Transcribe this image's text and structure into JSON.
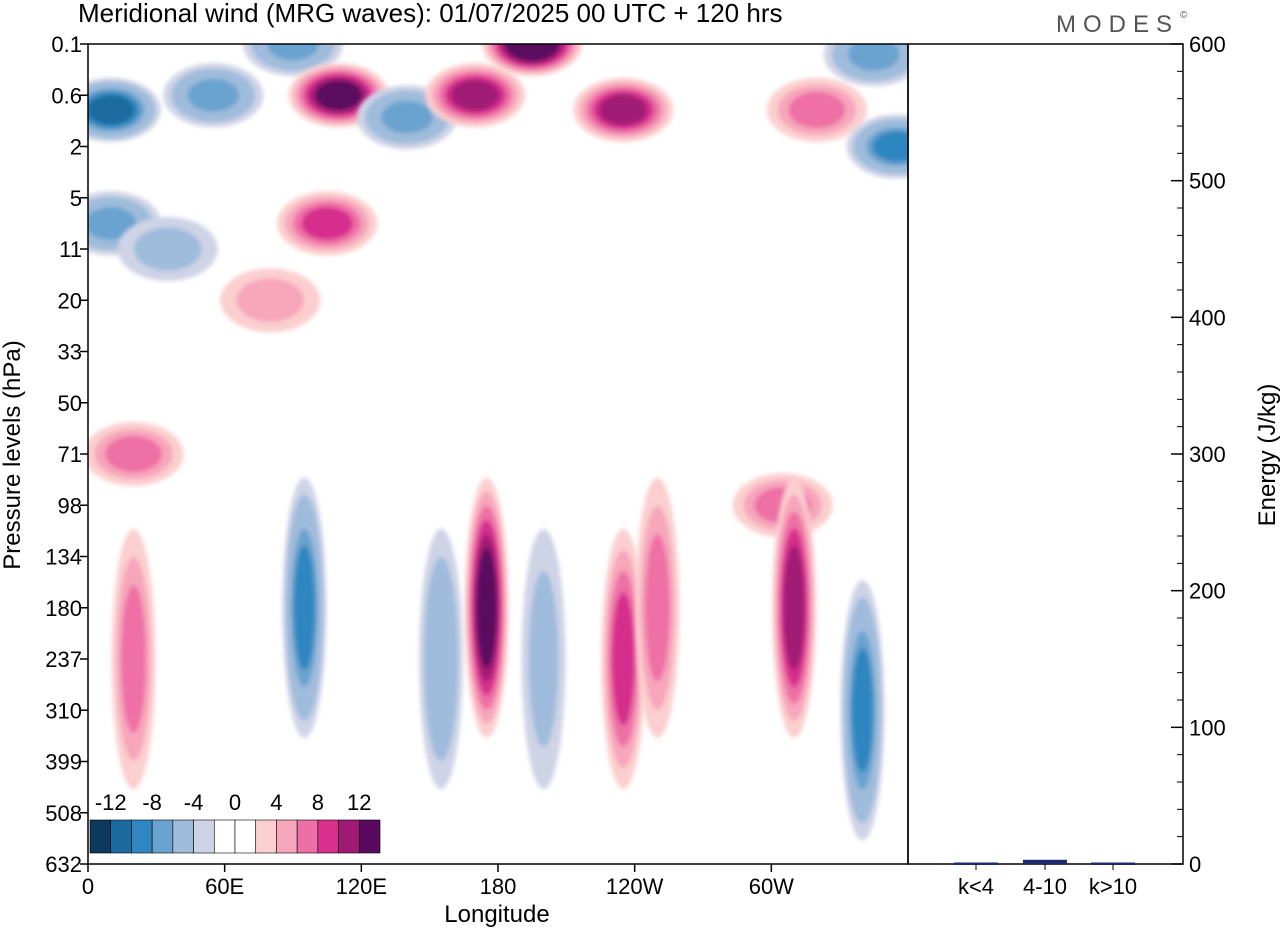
{
  "title": "Meridional wind (MRG waves):  01/07/2025  00 UTC  + 120 hrs",
  "brand": "MODES",
  "brand_mark": "©",
  "chart_data": [
    {
      "type": "heatmap",
      "title": "Meridional wind (MRG waves):  01/07/2025  00 UTC  + 120 hrs",
      "xlabel": "Longitude",
      "ylabel": "Pressure levels (hPa)",
      "x_ticks": [
        {
          "lon": 0,
          "label": "0"
        },
        {
          "lon": 60,
          "label": "60E"
        },
        {
          "lon": 120,
          "label": "120E"
        },
        {
          "lon": 180,
          "label": "180"
        },
        {
          "lon": 240,
          "label": "120W"
        },
        {
          "lon": 300,
          "label": "60W"
        }
      ],
      "xlim": [
        0,
        360
      ],
      "y_levels": [
        "0.1",
        "0.6",
        "2",
        "5",
        "11",
        "20",
        "33",
        "50",
        "71",
        "98",
        "134",
        "180",
        "237",
        "310",
        "399",
        "508",
        "632"
      ],
      "y_scale": "model levels (top 0.1 hPa, bottom 632 hPa)",
      "colorbar": {
        "labels": [
          "-12",
          "-8",
          "-4",
          "0",
          "4",
          "8",
          "12"
        ],
        "colors": [
          "#0c3a5e",
          "#1a6aa0",
          "#2f86c0",
          "#6aa3cf",
          "#9fbcdc",
          "#cfd3e6",
          "#ffffff",
          "#ffffff",
          "#fbcfcf",
          "#f7a6bb",
          "#ee6fa5",
          "#d62f8c",
          "#a01a74",
          "#5a0a5e"
        ],
        "placement": "bottom-left"
      },
      "features": [
        {
          "lon": 10,
          "level": "1",
          "value": -12
        },
        {
          "lon": 55,
          "level": "0.6",
          "value": -8
        },
        {
          "lon": 90,
          "level": "0.1",
          "value": -8
        },
        {
          "lon": 110,
          "level": "0.6",
          "value": 12
        },
        {
          "lon": 140,
          "level": "1.2",
          "value": -8
        },
        {
          "lon": 170,
          "level": "0.6",
          "value": 10
        },
        {
          "lon": 195,
          "level": "0.1",
          "value": 14
        },
        {
          "lon": 235,
          "level": "1",
          "value": 10
        },
        {
          "lon": 320,
          "level": "1",
          "value": 6
        },
        {
          "lon": 345,
          "level": "0.2",
          "value": -8
        },
        {
          "lon": 355,
          "level": "2",
          "value": -10
        },
        {
          "lon": 10,
          "level": "8",
          "value": -8
        },
        {
          "lon": 105,
          "level": "8",
          "value": 8
        },
        {
          "lon": 35,
          "level": "11",
          "value": -4
        },
        {
          "lon": 80,
          "level": "20",
          "value": 4
        },
        {
          "lon": 20,
          "level": "71",
          "value": 6
        },
        {
          "lon": 305,
          "level": "98",
          "value": 6
        },
        {
          "lon": 20,
          "level": "237",
          "value": 5
        },
        {
          "lon": 95,
          "level": "180",
          "value": -10
        },
        {
          "lon": 155,
          "level": "237",
          "value": -6
        },
        {
          "lon": 175,
          "level": "180",
          "value": 12
        },
        {
          "lon": 200,
          "level": "237",
          "value": -4
        },
        {
          "lon": 235,
          "level": "237",
          "value": 8
        },
        {
          "lon": 250,
          "level": "180",
          "value": 6
        },
        {
          "lon": 310,
          "level": "180",
          "value": 10
        },
        {
          "lon": 340,
          "level": "310",
          "value": -10
        }
      ]
    },
    {
      "type": "bar",
      "categories": [
        "k<4",
        "4-10",
        "k>10"
      ],
      "values": [
        0,
        2,
        0
      ],
      "ylabel": "Energy (J/kg)",
      "ylim": [
        0,
        600
      ],
      "y_ticks": [
        0,
        100,
        200,
        300,
        400,
        500,
        600
      ],
      "bar_color": "#1f2a6e"
    }
  ]
}
